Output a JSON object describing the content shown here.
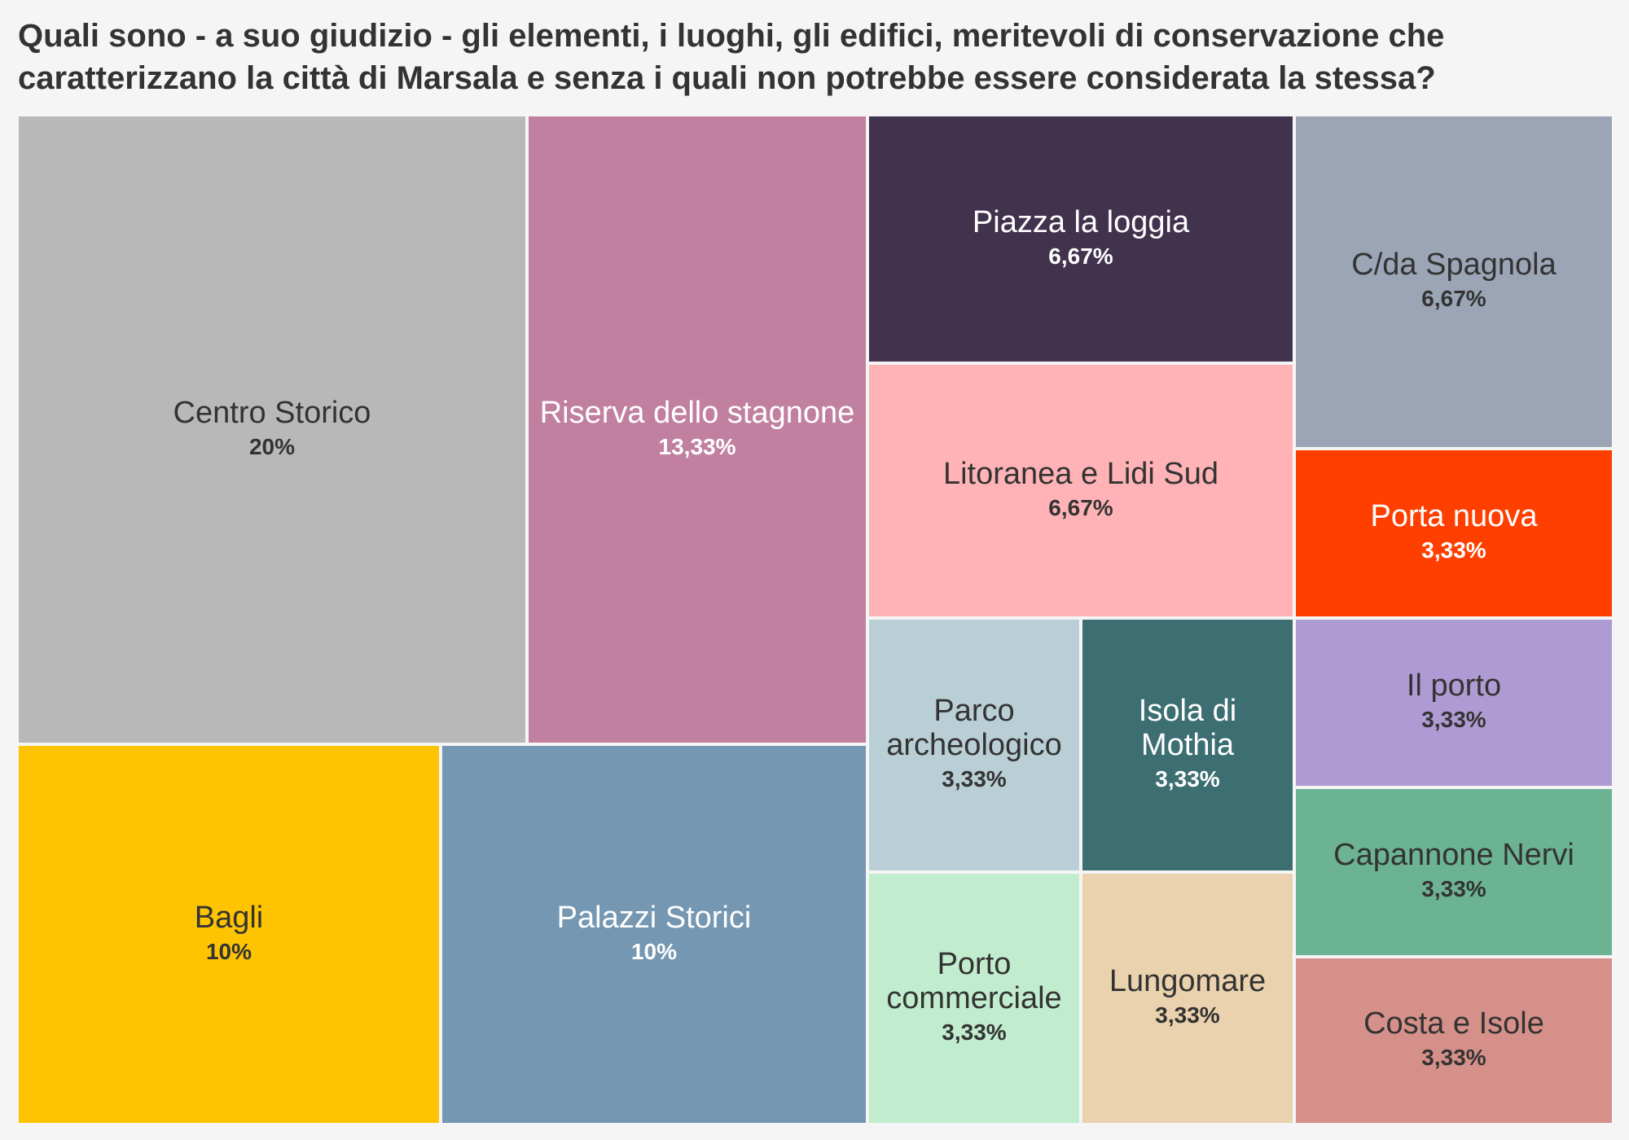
{
  "chart_data": {
    "type": "treemap",
    "title": "Quali sono - a suo giudizio - gli elementi, i luoghi, gli edifici, meritevoli di conservazione che caratterizzano la città di Marsala e senza i quali non potrebbe essere considerata la stessa?",
    "items": [
      {
        "label": "Centro Storico",
        "value_label": "20%",
        "value": 20,
        "color": "#b8b8b8",
        "text": "dark"
      },
      {
        "label": "Riserva dello stagnone",
        "value_label": "13,33%",
        "value": 13.33,
        "color": "#c1809f",
        "text": "light"
      },
      {
        "label": "Bagli",
        "value_label": "10%",
        "value": 10,
        "color": "#fec401",
        "text": "dark"
      },
      {
        "label": "Palazzi Storici",
        "value_label": "10%",
        "value": 10,
        "color": "#7597b2",
        "text": "light"
      },
      {
        "label": "Piazza la loggia",
        "value_label": "6,67%",
        "value": 6.67,
        "color": "#41324d",
        "text": "light"
      },
      {
        "label": "Litoranea e Lidi Sud",
        "value_label": "6,67%",
        "value": 6.67,
        "color": "#ffb3b6",
        "text": "dark"
      },
      {
        "label": "C/da Spagnola",
        "value_label": "6,67%",
        "value": 6.67,
        "color": "#9ba5b5",
        "text": "dark"
      },
      {
        "label": "Porta nuova",
        "value_label": "3,33%",
        "value": 3.33,
        "color": "#fe3f00",
        "text": "light"
      },
      {
        "label": "Parco archeologico",
        "value_label": "3,33%",
        "value": 3.33,
        "color": "#bacfd5",
        "text": "dark"
      },
      {
        "label": "Isola di Mothia",
        "value_label": "3,33%",
        "value": 3.33,
        "color": "#3c6e72",
        "text": "light"
      },
      {
        "label": "Il porto",
        "value_label": "3,33%",
        "value": 3.33,
        "color": "#ae9bd3",
        "text": "dark"
      },
      {
        "label": "Capannone Nervi",
        "value_label": "3,33%",
        "value": 3.33,
        "color": "#6cb394",
        "text": "dark"
      },
      {
        "label": "Porto commerciale",
        "value_label": "3,33%",
        "value": 3.33,
        "color": "#c2ecce",
        "text": "dark"
      },
      {
        "label": "Lungomare",
        "value_label": "3,33%",
        "value": 3.33,
        "color": "#e9d2ad",
        "text": "dark"
      },
      {
        "label": "Costa e Isole",
        "value_label": "3,33%",
        "value": 3.33,
        "color": "#d6908a",
        "text": "dark"
      }
    ]
  }
}
